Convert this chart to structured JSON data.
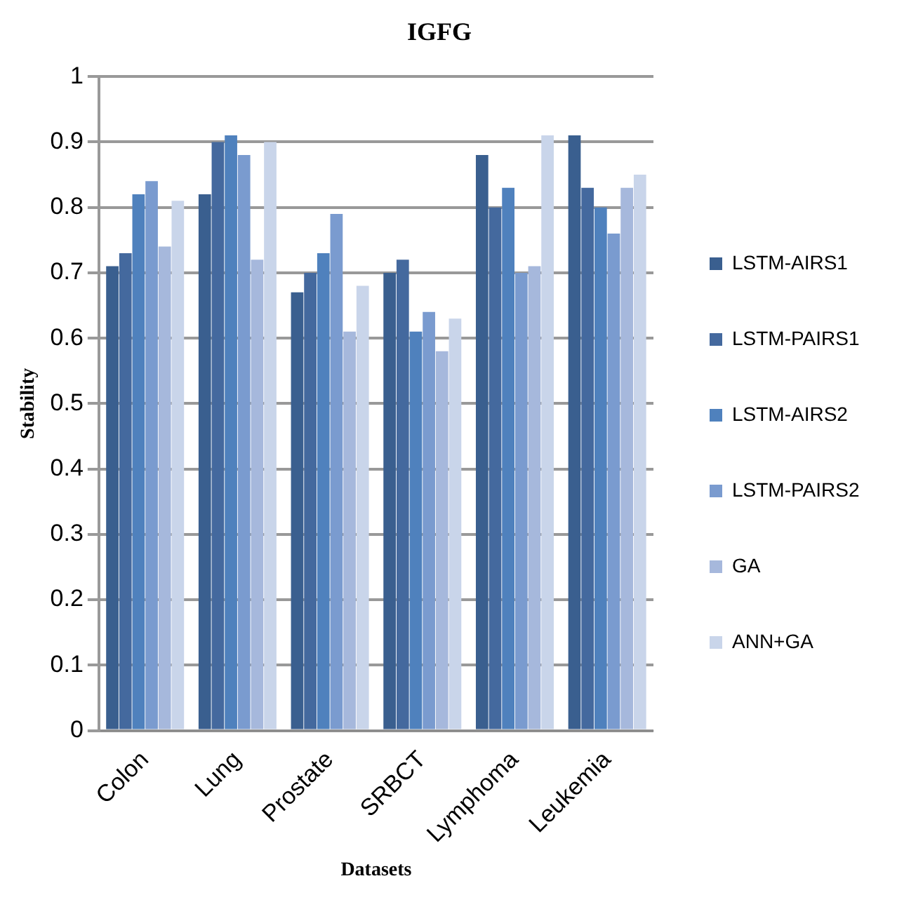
{
  "chart_data": {
    "type": "bar",
    "title": "IGFG",
    "xlabel": "Datasets",
    "ylabel": "Stability",
    "categories": [
      "Colon",
      "Lung",
      "Prostate",
      "SRBCT",
      "Lymphoma",
      "Leukemia"
    ],
    "series": [
      {
        "name": "LSTM-AIRS1",
        "color": "#3a5f8f",
        "values": [
          0.71,
          0.82,
          0.67,
          0.7,
          0.88,
          0.91
        ]
      },
      {
        "name": "LSTM-PAIRS1",
        "color": "#44699e",
        "values": [
          0.73,
          0.9,
          0.7,
          0.72,
          0.8,
          0.83
        ]
      },
      {
        "name": "LSTM-AIRS2",
        "color": "#4f81bd",
        "values": [
          0.82,
          0.91,
          0.73,
          0.61,
          0.83,
          0.8
        ]
      },
      {
        "name": "LSTM-PAIRS2",
        "color": "#7a9bcf",
        "values": [
          0.84,
          0.88,
          0.79,
          0.64,
          0.7,
          0.76
        ]
      },
      {
        "name": "GA",
        "color": "#a6b8dc",
        "values": [
          0.74,
          0.72,
          0.61,
          0.58,
          0.71,
          0.83
        ]
      },
      {
        "name": "ANN+GA",
        "color": "#c9d5ea",
        "values": [
          0.81,
          0.9,
          0.68,
          0.63,
          0.91,
          0.85
        ]
      }
    ],
    "ylim": [
      0,
      1
    ],
    "yticks": [
      0,
      0.1,
      0.2,
      0.3,
      0.4,
      0.5,
      0.6,
      0.7,
      0.8,
      0.9,
      1
    ],
    "grid": "y",
    "legend": "right"
  }
}
